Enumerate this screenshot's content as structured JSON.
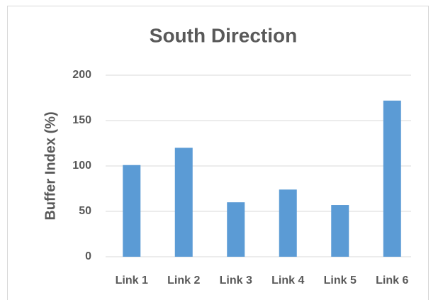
{
  "chart_data": {
    "type": "bar",
    "title": "South Direction",
    "y_label": "Buffer Index (%)",
    "categories": [
      "Link 1",
      "Link 2",
      "Link 3",
      "Link 4",
      "Link 5",
      "Link 6"
    ],
    "values": [
      101,
      120,
      60,
      74,
      57,
      172
    ],
    "color": "#5b9bd5",
    "ylim": [
      0,
      200
    ],
    "yticks": [
      0,
      50,
      100,
      150,
      200
    ],
    "grid": true
  }
}
